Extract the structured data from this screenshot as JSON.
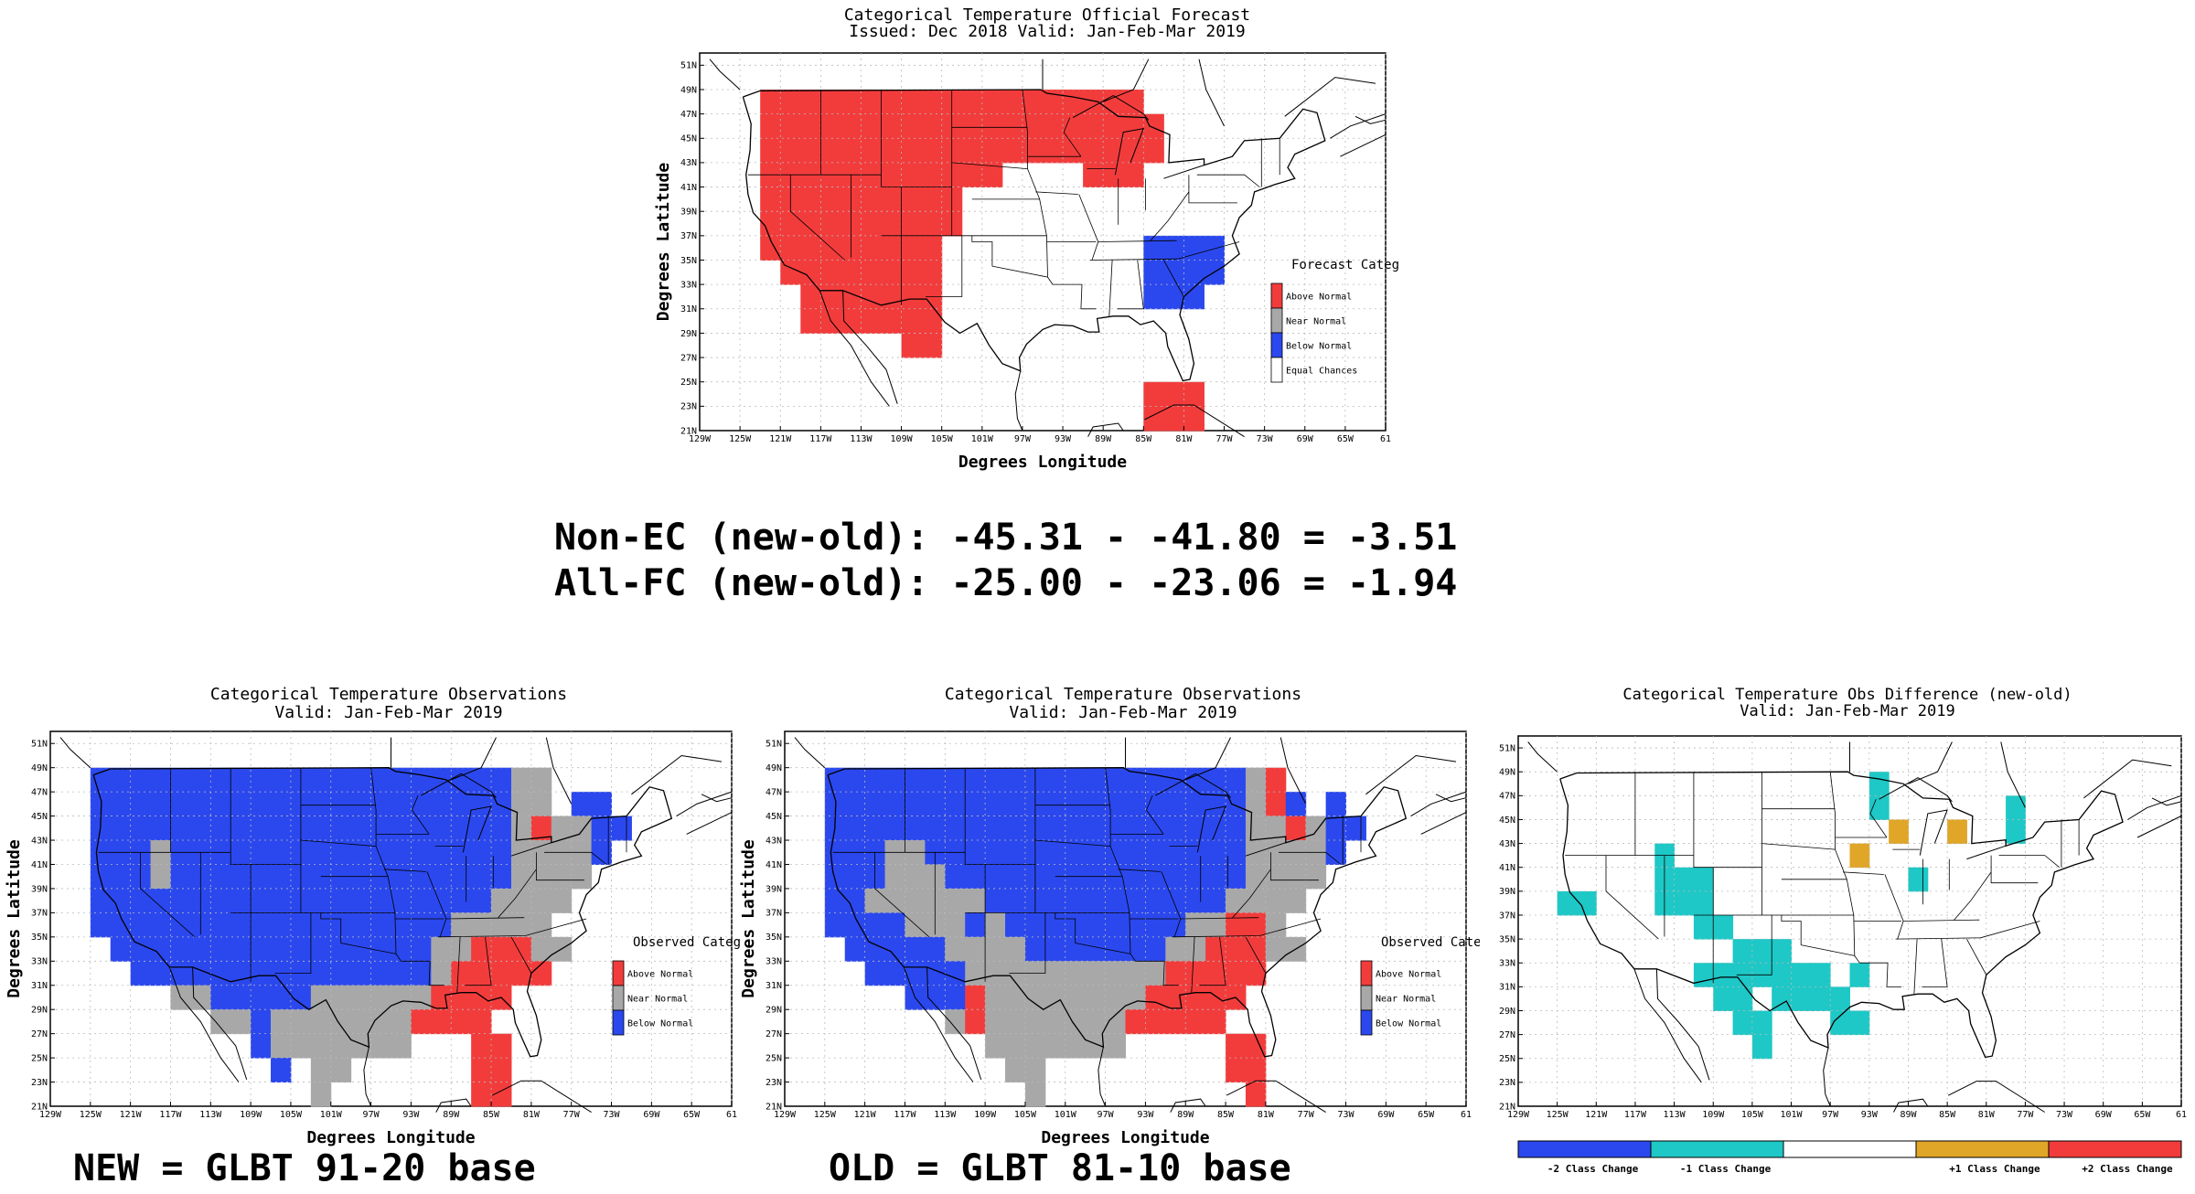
{
  "colors": {
    "above": "#f23c3c",
    "near": "#a8a8a8",
    "below": "#2b48ee",
    "equal": "#ffffff",
    "minus2": "#2b48ee",
    "minus1": "#1ec8c6",
    "plus1": "#e0a628",
    "plus2": "#f23c3c"
  },
  "axis": {
    "lat_ticks": [
      "51N",
      "49N",
      "47N",
      "45N",
      "43N",
      "41N",
      "39N",
      "37N",
      "35N",
      "33N",
      "31N",
      "29N",
      "27N",
      "25N",
      "23N",
      "21N"
    ],
    "lon_ticks": [
      "129W",
      "125W",
      "121W",
      "117W",
      "113W",
      "109W",
      "105W",
      "101W",
      "97W",
      "93W",
      "89W",
      "85W",
      "81W",
      "77W",
      "73W",
      "69W",
      "65W",
      "61"
    ],
    "xlabel": "Degrees Longitude",
    "ylabel": "Degrees Latitude"
  },
  "panels": {
    "forecast": {
      "title1": "Categorical Temperature Official Forecast",
      "title2": "Issued: Dec 2018 Valid: Jan-Feb-Mar 2019",
      "legend_title": "Forecast Category",
      "legend": [
        {
          "key": "above",
          "label": "Above Normal"
        },
        {
          "key": "near",
          "label": "Near Normal"
        },
        {
          "key": "below",
          "label": "Below Normal"
        },
        {
          "key": "equal",
          "label": "Equal Chances"
        }
      ],
      "grid": [
        "...........................",
        "...AAAAAAAAAAAAAAAAAAA.....",
        "...AAAAAAAAAAAAAAAAAAAA....",
        "...AAAAAAAAAAAAAAAAAAAA....",
        "...AAAAAAAAAAAA....AAA.....",
        "...AAAAAAAAAA..............",
        "...AAAAAAAAAA..............",
        "...AAAAAAAAA..........BBBB.",
        "....AAAAAAAA..........BBBB.",
        ".....AAAAAAA..........BBB..",
        ".....AAAAAAA...............",
        "..........AA...............",
        "...........................",
        "......................AAA..",
        "......................AAA..",
        "..........................."
      ]
    },
    "obs_new": {
      "title1": "Categorical Temperature Observations",
      "title2": "Valid: Jan-Feb-Mar 2019",
      "legend_title": "Observed Category",
      "legend": [
        {
          "key": "above",
          "label": "Above Normal"
        },
        {
          "key": "near",
          "label": "Near Normal"
        },
        {
          "key": "below",
          "label": "Below Normal"
        }
      ],
      "grid": [
        "...........................",
        "..BBBBBBBBBBBBBBBBBBBBBNN..",
        "..BBBBBBBBBBBBBBBBBBBBBNN.BB",
        "..BBBBBBBBBBBBBBBBBBBBBNANNBB",
        "..BBBNBBBBBBBBBBBBBBBBBNNNNB",
        "..BBBNBBBBBBBBBBBBBBBBBNNNN.",
        "..BBBBBBBBBBBBBBBBBBBBNNNN..",
        "..BBBBBBBBBBBBBBBBBBNNNNN...",
        "...BBBBBBBBBBBBBBBBNNAAANN..",
        "....BBBBBBBBBBBBBBBNAAAAA...",
        "......NNBBBBBNNNNNNAAAA.....",
        "........NNBNNNNNNNAAAA......",
        "..........BNNNNNNN...AA.....",
        "...........B.NN......AA.....",
        ".............N.......AA.....",
        "..........................."
      ]
    },
    "obs_old": {
      "title1": "Categorical Temperature Observations",
      "title2": "Valid: Jan-Feb-Mar 2019",
      "legend_title": "Observed Category",
      "legend": [
        {
          "key": "above",
          "label": "Above Normal"
        },
        {
          "key": "near",
          "label": "Near Normal"
        },
        {
          "key": "below",
          "label": "Below Normal"
        }
      ],
      "grid": [
        "...........................",
        "..BBBBBBBBBBBBBBBBBBBBBNA..",
        "..BBBBBBBBBBBBBBBBBBBBBNAB.B",
        "..BBBBBBBBBBBBBBBBBBBBBNNANBB",
        "..BBBNNBBBBBBBBBBBBBBBBNNNNB",
        "..BBBNNNBBBBBBBBBBBBBBBNNNN.",
        "..BBNNNNNNBBBBBBBBBBBBNNNN..",
        "..BBBBNNNBNBBBBBBBBBNNAAN...",
        "...BBBBBNNNNBBBBBBBNNAAANN..",
        "....BBBBBNNNNNNNNNNAAAAA....",
        "......BBBANNNNNNNNAAAAA.....",
        "........NANNNNNNNAAAAA......",
        "..........NNNNNNN.....AA....",
        "...........NN.........AA....",
        "............N..........A....",
        "..........................."
      ]
    },
    "diff": {
      "title1": "Categorical Temperature Obs Difference (new-old)",
      "title2": "Valid: Jan-Feb-Mar 2019",
      "colorbar": [
        {
          "key": "minus2",
          "label": "-2 Class Change"
        },
        {
          "key": "minus1",
          "label": "-1 Class Change"
        },
        {
          "key": "equal",
          "label": ""
        },
        {
          "key": "plus1",
          "label": "+1 Class Change"
        },
        {
          "key": "plus2",
          "label": "+2 Class Change"
        }
      ],
      "grid": [
        "...........................",
        "..................C.........",
        "..................C......C..",
        "...................O..O..C..",
        ".......C.........O..........",
        ".......CCC..........C.......",
        "..CC...CCC...............",
        ".........CC..............",
        "...........CCC...........",
        ".........CCCCCCC.C.......",
        "..........CC.CCCC........",
        "...........CC...CC.......",
        "............C............",
        "..........................",
        "..........................",
        ".........................."
      ]
    }
  },
  "stats": {
    "line1": "Non-EC (new-old): -45.31 - -41.80 = -3.51",
    "line2": "All-FC (new-old): -25.00 - -23.06 = -1.94"
  },
  "captions": {
    "new": "NEW = GLBT 91-20 base",
    "old": "OLD = GLBT 81-10 base"
  }
}
